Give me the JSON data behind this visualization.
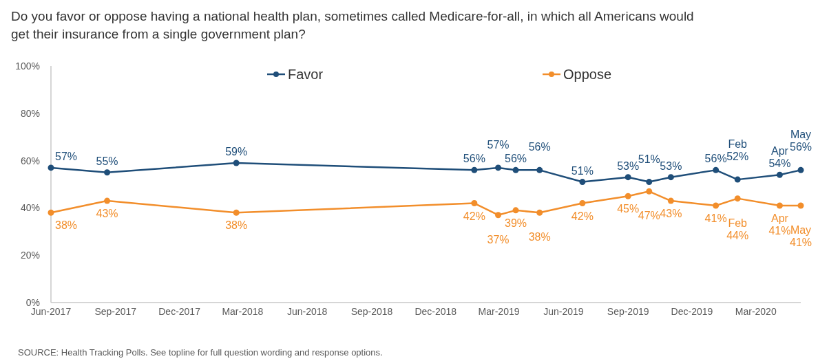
{
  "chart_data": {
    "type": "line",
    "title": "Do you favor or oppose having a national health plan, sometimes called Medicare-for-all, in which all Americans would get their insurance from a single government plan?",
    "x": [
      "2017-06-01",
      "2017-08-20",
      "2018-02-20",
      "2019-01-25",
      "2019-02-28",
      "2019-03-25",
      "2019-04-28",
      "2019-06-28",
      "2019-09-01",
      "2019-10-01",
      "2019-11-01",
      "2020-01-04",
      "2020-02-04",
      "2020-04-04",
      "2020-05-04"
    ],
    "series": [
      {
        "name": "Favor",
        "color": "#1f4e79",
        "values": [
          57,
          55,
          59,
          56,
          57,
          56,
          56,
          51,
          53,
          51,
          53,
          56,
          52,
          54,
          56
        ],
        "value_labels": [
          "57%",
          "55%",
          "59%",
          "56%",
          "57%",
          "56%",
          "56%",
          "51%",
          "53%",
          "51%",
          "53%",
          "56%",
          "Feb 52%",
          "Apr 54%",
          "May 56%"
        ]
      },
      {
        "name": "Oppose",
        "color": "#f28e2b",
        "values": [
          38,
          43,
          38,
          42,
          37,
          39,
          38,
          42,
          45,
          47,
          43,
          41,
          44,
          41,
          41
        ],
        "value_labels": [
          "38%",
          "43%",
          "38%",
          "42%",
          "37%",
          "39%",
          "38%",
          "42%",
          "45%",
          "47%",
          "43%",
          "41%",
          "Feb 44%",
          "Apr 41%",
          "May 41%"
        ]
      }
    ],
    "xlim": [
      "2017-06-01",
      "2020-05-04"
    ],
    "xticks": [
      {
        "value": "2017-06-01",
        "label": "Jun-2017"
      },
      {
        "value": "2017-09-01",
        "label": "Sep-2017"
      },
      {
        "value": "2017-12-01",
        "label": "Dec-2017"
      },
      {
        "value": "2018-03-01",
        "label": "Mar-2018"
      },
      {
        "value": "2018-06-01",
        "label": "Jun-2018"
      },
      {
        "value": "2018-09-01",
        "label": "Sep-2018"
      },
      {
        "value": "2018-12-01",
        "label": "Dec-2018"
      },
      {
        "value": "2019-03-01",
        "label": "Mar-2019"
      },
      {
        "value": "2019-06-01",
        "label": "Jun-2019"
      },
      {
        "value": "2019-09-01",
        "label": "Sep-2019"
      },
      {
        "value": "2019-12-01",
        "label": "Dec-2019"
      },
      {
        "value": "2020-03-01",
        "label": "Mar-2020"
      }
    ],
    "ylim": [
      0,
      100
    ],
    "yticks": [
      {
        "value": 0,
        "label": "0%"
      },
      {
        "value": 20,
        "label": "20%"
      },
      {
        "value": 40,
        "label": "40%"
      },
      {
        "value": 60,
        "label": "60%"
      },
      {
        "value": 80,
        "label": "80%"
      },
      {
        "value": 100,
        "label": "100%"
      }
    ],
    "grid": false,
    "legend": "top",
    "marker": "circle",
    "line_style": "solid",
    "annotations": [
      "SOURCE: Health Tracking Polls. See topline for full question wording and response options."
    ]
  }
}
